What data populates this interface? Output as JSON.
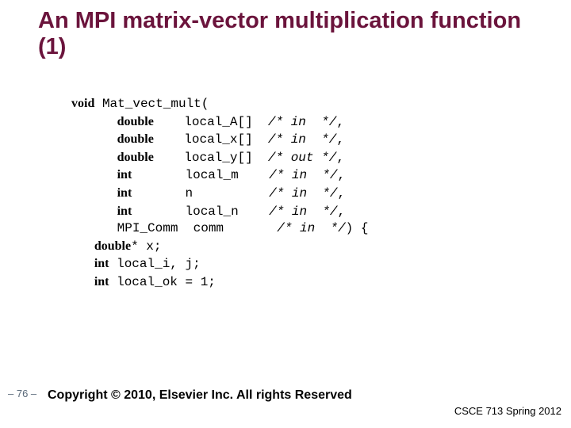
{
  "title": {
    "text": "An MPI matrix-vector multiplication function (1)",
    "color": "#6b143c",
    "fontsize": 29
  },
  "code": {
    "fontsize": 16,
    "lines": [
      {
        "segments": [
          {
            "t": "void",
            "kw": true
          },
          {
            "t": " Mat_vect_mult("
          }
        ]
      },
      {
        "segments": [
          {
            "t": "      "
          },
          {
            "t": "double",
            "kw": true
          },
          {
            "t": "    local_A[]  "
          },
          {
            "t": "/* in  */",
            "it": true
          },
          {
            "t": ","
          }
        ]
      },
      {
        "segments": [
          {
            "t": "      "
          },
          {
            "t": "double",
            "kw": true
          },
          {
            "t": "    local_x[]  "
          },
          {
            "t": "/* in  */",
            "it": true
          },
          {
            "t": ","
          }
        ]
      },
      {
        "segments": [
          {
            "t": "      "
          },
          {
            "t": "double",
            "kw": true
          },
          {
            "t": "    local_y[]  "
          },
          {
            "t": "/* out */",
            "it": true
          },
          {
            "t": ","
          }
        ]
      },
      {
        "segments": [
          {
            "t": "      "
          },
          {
            "t": "int",
            "kw": true
          },
          {
            "t": "       local_m    "
          },
          {
            "t": "/* in  */",
            "it": true
          },
          {
            "t": ","
          }
        ]
      },
      {
        "segments": [
          {
            "t": "      "
          },
          {
            "t": "int",
            "kw": true
          },
          {
            "t": "       n          "
          },
          {
            "t": "/* in  */",
            "it": true
          },
          {
            "t": ","
          }
        ]
      },
      {
        "segments": [
          {
            "t": "      "
          },
          {
            "t": "int",
            "kw": true
          },
          {
            "t": "       local_n    "
          },
          {
            "t": "/* in  */",
            "it": true
          },
          {
            "t": ","
          }
        ]
      },
      {
        "segments": [
          {
            "t": "      MPI_Comm  comm       "
          },
          {
            "t": "/* in  */",
            "it": true
          },
          {
            "t": ") {"
          }
        ]
      },
      {
        "segments": [
          {
            "t": "   "
          },
          {
            "t": "double",
            "kw": true
          },
          {
            "t": "* x;"
          }
        ]
      },
      {
        "segments": [
          {
            "t": "   "
          },
          {
            "t": "int",
            "kw": true
          },
          {
            "t": " local_i, j;"
          }
        ]
      },
      {
        "segments": [
          {
            "t": "   "
          },
          {
            "t": "int",
            "kw": true
          },
          {
            "t": " local_ok = 1;"
          }
        ]
      }
    ]
  },
  "page_number": {
    "text": "– 76 –",
    "fontsize": 13
  },
  "copyright": {
    "text": "Copyright © 2010, Elsevier Inc. All rights Reserved",
    "fontsize": 16
  },
  "course": {
    "text": "CSCE 713 Spring 2012",
    "fontsize": 13
  }
}
